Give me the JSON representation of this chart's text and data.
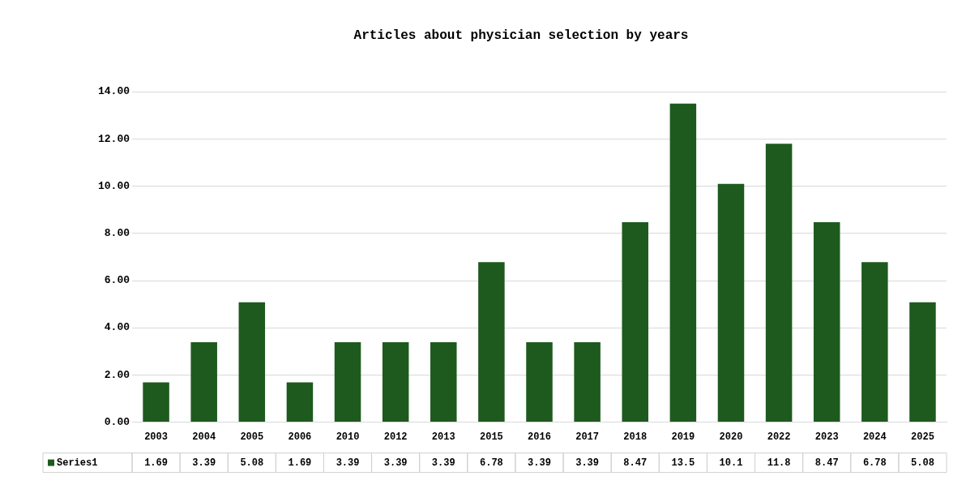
{
  "chart_data": {
    "type": "bar",
    "title": "Articles about physician selection by years",
    "categories": [
      "2003",
      "2004",
      "2005",
      "2006",
      "2010",
      "2012",
      "2013",
      "2015",
      "2016",
      "2017",
      "2018",
      "2019",
      "2020",
      "2022",
      "2023",
      "2024",
      "2025"
    ],
    "series": [
      {
        "name": "Series1",
        "color": "#1e5a1e",
        "values": [
          1.69,
          3.39,
          5.08,
          1.69,
          3.39,
          3.39,
          3.39,
          6.78,
          3.39,
          3.39,
          8.47,
          13.5,
          10.1,
          11.8,
          8.47,
          6.78,
          5.08
        ]
      }
    ],
    "ylim": [
      0,
      14
    ],
    "yticks": [
      {
        "value": 0,
        "label": "0.00"
      },
      {
        "value": 2,
        "label": "2.00"
      },
      {
        "value": 4,
        "label": "4.00"
      },
      {
        "value": 6,
        "label": "6.00"
      },
      {
        "value": 8,
        "label": "8.00"
      },
      {
        "value": 10,
        "label": "10.00"
      },
      {
        "value": 12,
        "label": "12.00"
      },
      {
        "value": 14,
        "label": "14.00"
      }
    ],
    "grid": "y",
    "data_labels": true
  }
}
